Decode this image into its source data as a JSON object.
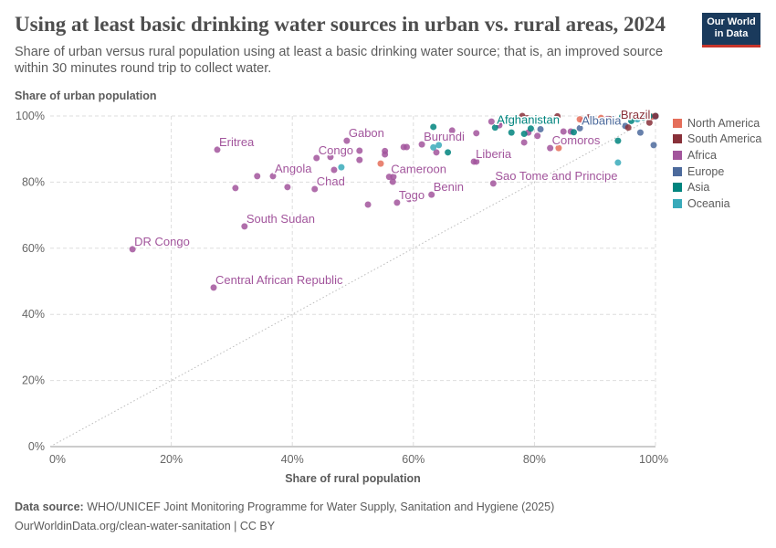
{
  "header": {
    "title": "Using at least basic drinking water sources in urban vs. rural areas, 2024",
    "subtitle": "Share of urban versus rural population using at least a basic drinking water source; that is, an improved source within 30 minutes round trip to collect water.",
    "logo": "Our World in Data"
  },
  "footer": {
    "source_label": "Data source:",
    "source": "WHO/UNICEF Joint Monitoring Programme for Water Supply, Sanitation and Hygiene (2025)",
    "url": "OurWorldinData.org/clean-water-sanitation | CC BY"
  },
  "chart_data": {
    "type": "scatter",
    "xlabel": "Share of rural population",
    "ylabel": "Share of urban population",
    "xlim": [
      0,
      100
    ],
    "ylim": [
      0,
      100
    ],
    "xticks": [
      "0%",
      "20%",
      "40%",
      "60%",
      "80%",
      "100%"
    ],
    "yticks": [
      "0%",
      "20%",
      "40%",
      "60%",
      "80%",
      "100%"
    ],
    "grid": true,
    "legend_placement": "right",
    "reference_line": "y = x",
    "colors": {
      "North America": "#e56e5a",
      "South America": "#883039",
      "Africa": "#a2559c",
      "Europe": "#4c6a9c",
      "Asia": "#00847e",
      "Oceania": "#38aaba"
    },
    "legend": [
      "North America",
      "South America",
      "Africa",
      "Europe",
      "Asia",
      "Oceania"
    ],
    "points": [
      {
        "label": "DR Congo",
        "region": "Africa",
        "x": 13.6,
        "y": 59.7
      },
      {
        "label": "Central African Republic",
        "region": "Africa",
        "x": 27.0,
        "y": 48.1
      },
      {
        "label": "South Sudan",
        "region": "Africa",
        "x": 32.1,
        "y": 66.6
      },
      {
        "label": "Eritrea",
        "region": "Africa",
        "x": 27.6,
        "y": 89.8
      },
      {
        "region": "Africa",
        "x": 30.6,
        "y": 78.2
      },
      {
        "region": "Africa",
        "x": 34.2,
        "y": 81.8
      },
      {
        "label": "Angola",
        "region": "Africa",
        "x": 36.8,
        "y": 81.8
      },
      {
        "region": "Africa",
        "x": 39.2,
        "y": 78.5
      },
      {
        "label": "Chad",
        "region": "Africa",
        "x": 43.7,
        "y": 77.9
      },
      {
        "label": "Congo",
        "region": "Africa",
        "x": 44.0,
        "y": 87.3
      },
      {
        "region": "Africa",
        "x": 46.3,
        "y": 87.6
      },
      {
        "region": "Africa",
        "x": 46.9,
        "y": 83.7
      },
      {
        "label": "Gabon",
        "region": "Africa",
        "x": 49.0,
        "y": 92.5
      },
      {
        "region": "Africa",
        "x": 51.1,
        "y": 86.7
      },
      {
        "region": "Africa",
        "x": 51.1,
        "y": 89.5
      },
      {
        "region": "Africa",
        "x": 52.5,
        "y": 73.2
      },
      {
        "region": "Africa",
        "x": 55.3,
        "y": 88.4
      },
      {
        "region": "Africa",
        "x": 55.3,
        "y": 89.4
      },
      {
        "label": "Cameroon",
        "region": "Africa",
        "x": 56.0,
        "y": 81.6
      },
      {
        "region": "Africa",
        "x": 56.7,
        "y": 81.6
      },
      {
        "region": "Africa",
        "x": 56.6,
        "y": 80.1
      },
      {
        "label": "Togo",
        "region": "Africa",
        "x": 57.3,
        "y": 73.8
      },
      {
        "region": "Africa",
        "x": 58.4,
        "y": 90.6
      },
      {
        "region": "Africa",
        "x": 58.9,
        "y": 90.6
      },
      {
        "region": "Africa",
        "x": 59.3,
        "y": 74.9
      },
      {
        "label": "Burundi",
        "region": "Africa",
        "x": 61.4,
        "y": 91.4
      },
      {
        "region": "Africa",
        "x": 63.8,
        "y": 89.0
      },
      {
        "label": "Benin",
        "region": "Africa",
        "x": 63.0,
        "y": 76.2
      },
      {
        "region": "Africa",
        "x": 64.4,
        "y": 83.4
      },
      {
        "region": "Africa",
        "x": 66.4,
        "y": 95.6
      },
      {
        "label": "Liberia",
        "region": "Africa",
        "x": 70.0,
        "y": 86.2
      },
      {
        "region": "Africa",
        "x": 70.4,
        "y": 86.2
      },
      {
        "region": "Africa",
        "x": 70.4,
        "y": 94.8
      },
      {
        "region": "Africa",
        "x": 72.9,
        "y": 98.3
      },
      {
        "label": "Sao Tome and Principe",
        "region": "Africa",
        "x": 73.2,
        "y": 79.6
      },
      {
        "region": "Africa",
        "x": 74.2,
        "y": 97.2
      },
      {
        "region": "Africa",
        "x": 74.2,
        "y": 98.1
      },
      {
        "region": "Africa",
        "x": 78.3,
        "y": 92.0
      },
      {
        "region": "Africa",
        "x": 79.0,
        "y": 95.0
      },
      {
        "label": "Comoros",
        "region": "Africa",
        "x": 82.6,
        "y": 90.3
      },
      {
        "region": "Africa",
        "x": 80.5,
        "y": 94.0
      },
      {
        "region": "Africa",
        "x": 84.8,
        "y": 95.3
      },
      {
        "region": "Africa",
        "x": 86.0,
        "y": 95.3
      },
      {
        "region": "Africa",
        "x": 88.0,
        "y": 98.6
      },
      {
        "region": "Africa",
        "x": 92.0,
        "y": 99.0
      },
      {
        "region": "North America",
        "x": 54.6,
        "y": 85.6
      },
      {
        "region": "North America",
        "x": 84.0,
        "y": 90.3
      },
      {
        "region": "North America",
        "x": 87.5,
        "y": 99.0
      },
      {
        "region": "North America",
        "x": 91.0,
        "y": 99.4
      },
      {
        "region": "North America",
        "x": 96.0,
        "y": 99.6
      },
      {
        "region": "North America",
        "x": 99.5,
        "y": 99.8
      },
      {
        "region": "Oceania",
        "x": 48.1,
        "y": 84.5
      },
      {
        "region": "Oceania",
        "x": 63.3,
        "y": 90.5
      },
      {
        "region": "Oceania",
        "x": 64.2,
        "y": 91.2
      },
      {
        "region": "Oceania",
        "x": 93.8,
        "y": 85.9
      },
      {
        "region": "Oceania",
        "x": 97.0,
        "y": 99.0
      },
      {
        "region": "Asia",
        "x": 63.3,
        "y": 96.7
      },
      {
        "region": "Asia",
        "x": 65.7,
        "y": 89.0
      },
      {
        "region": "Asia",
        "x": 76.2,
        "y": 95.0
      },
      {
        "label": "Afghanistan",
        "region": "Asia",
        "x": 73.5,
        "y": 96.5
      },
      {
        "region": "Asia",
        "x": 78.3,
        "y": 94.6
      },
      {
        "region": "Asia",
        "x": 79.4,
        "y": 96.2
      },
      {
        "region": "Asia",
        "x": 86.5,
        "y": 95.1
      },
      {
        "region": "Asia",
        "x": 89.5,
        "y": 99.4
      },
      {
        "region": "Asia",
        "x": 93.8,
        "y": 92.5
      },
      {
        "region": "Asia",
        "x": 94.5,
        "y": 99.8
      },
      {
        "region": "Asia",
        "x": 96.0,
        "y": 98.5
      },
      {
        "region": "Asia",
        "x": 98.0,
        "y": 99.5
      },
      {
        "region": "Asia",
        "x": 99.0,
        "y": 100
      },
      {
        "region": "Asia",
        "x": 100,
        "y": 100
      },
      {
        "region": "Europe",
        "x": 99.7,
        "y": 91.2
      },
      {
        "region": "Europe",
        "x": 81.0,
        "y": 96.0
      },
      {
        "region": "Europe",
        "x": 97.5,
        "y": 95.0
      },
      {
        "label": "Albania",
        "region": "Europe",
        "x": 87.5,
        "y": 96.3
      },
      {
        "region": "Europe",
        "x": 95.0,
        "y": 97.0
      },
      {
        "region": "Europe",
        "x": 98.5,
        "y": 99.9
      },
      {
        "region": "Europe",
        "x": 100,
        "y": 99.9
      },
      {
        "region": "South America",
        "x": 78.0,
        "y": 100
      },
      {
        "region": "South America",
        "x": 78.8,
        "y": 99.3
      },
      {
        "region": "South America",
        "x": 83.8,
        "y": 99.9
      },
      {
        "region": "South America",
        "x": 89.0,
        "y": 99.6
      },
      {
        "region": "South America",
        "x": 92.5,
        "y": 99.0
      },
      {
        "region": "South America",
        "x": 95.5,
        "y": 96.5
      },
      {
        "label": "Brazil",
        "region": "South America",
        "x": 99.0,
        "y": 98.0
      },
      {
        "region": "South America",
        "x": 100,
        "y": 100
      }
    ]
  }
}
